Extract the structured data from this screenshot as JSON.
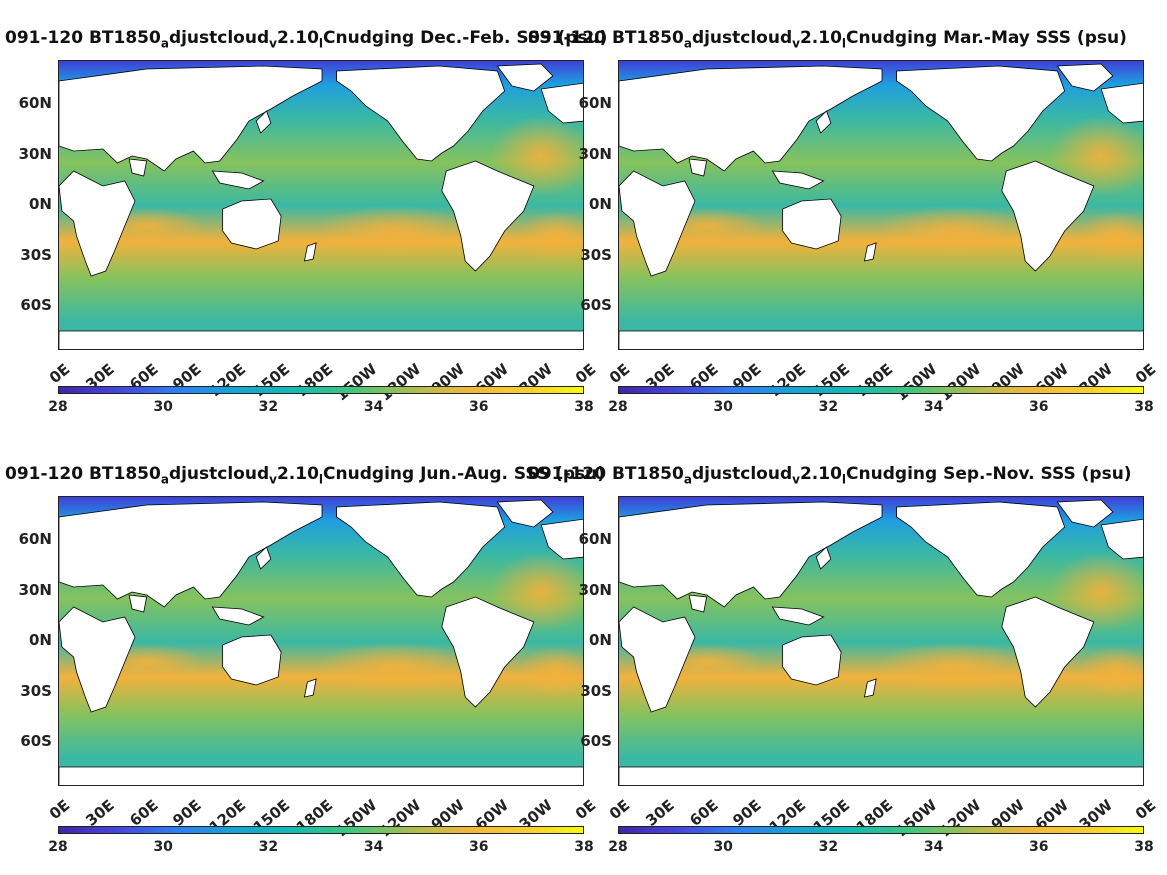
{
  "panels": [
    {
      "id": "djf",
      "title_parts": [
        "091-120 BT1850",
        "a",
        "djustcloud",
        "v",
        "2.10",
        "l",
        "Cnudging Dec.-Feb. SSS (psu)"
      ]
    },
    {
      "id": "mam",
      "title_parts": [
        "091-120 BT1850",
        "a",
        "djustcloud",
        "v",
        "2.10",
        "l",
        "Cnudging Mar.-May SSS (psu)"
      ]
    },
    {
      "id": "jja",
      "title_parts": [
        "091-120 BT1850",
        "a",
        "djustcloud",
        "v",
        "2.10",
        "l",
        "Cnudging Jun.-Aug. SSS (psu)"
      ]
    },
    {
      "id": "son",
      "title_parts": [
        "091-120 BT1850",
        "a",
        "djustcloud",
        "v",
        "2.10",
        "l",
        "Cnudging Sep.-Nov. SSS (psu)"
      ]
    }
  ],
  "lat_labels": [
    "60N",
    "30N",
    "0N",
    "30S",
    "60S"
  ],
  "lon_labels": [
    "0E",
    "30E",
    "60E",
    "90E",
    "120E",
    "150E",
    "180E",
    "150W",
    "120W",
    "90W",
    "60W",
    "30W",
    "0E"
  ],
  "colorbar": {
    "ticks": [
      "28",
      "30",
      "32",
      "34",
      "36",
      "38"
    ],
    "min": 28,
    "max": 38,
    "colors": [
      "#3e26a8",
      "#4745e0",
      "#2f7cf6",
      "#16a4d6",
      "#12bcb2",
      "#3fc67f",
      "#a4be52",
      "#efb73c",
      "#fccd2e",
      "#f9fb0e"
    ]
  },
  "map_colors": {
    "ocean_base": "#3ab8a4",
    "high_salinity": "#f2b13c",
    "mid_salinity": "#86c25e",
    "low_salinity": "#1f9ee0",
    "very_low": "#3f3fd8",
    "land": "#ffffff"
  }
}
